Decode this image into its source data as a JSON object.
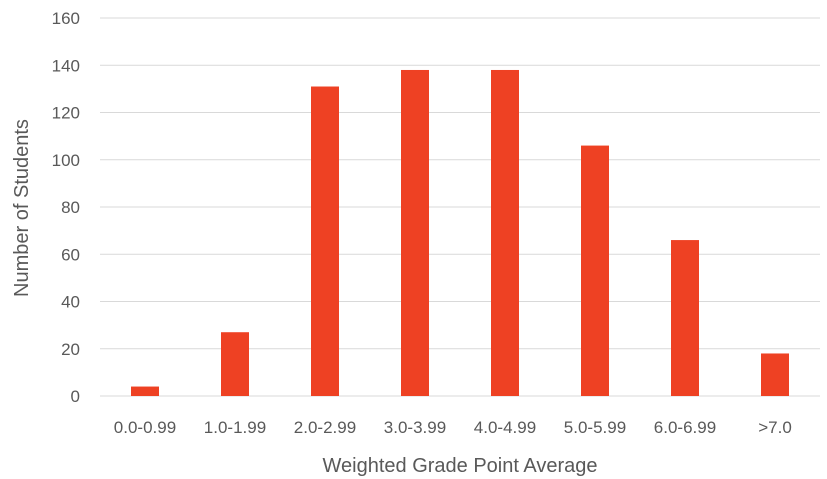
{
  "chart_data": {
    "type": "bar",
    "title": "",
    "xlabel": "Weighted Grade Point Average",
    "ylabel": "Number of Students",
    "categories": [
      "0.0-0.99",
      "1.0-1.99",
      "2.0-2.99",
      "3.0-3.99",
      "4.0-4.99",
      "5.0-5.99",
      "6.0-6.99",
      ">7.0"
    ],
    "values": [
      4,
      27,
      131,
      138,
      138,
      106,
      66,
      18
    ],
    "ylim": [
      0,
      160
    ],
    "yticks": [
      0,
      20,
      40,
      60,
      80,
      100,
      120,
      140,
      160
    ],
    "grid": true,
    "legend": "none",
    "bar_color": "#ee4123"
  }
}
